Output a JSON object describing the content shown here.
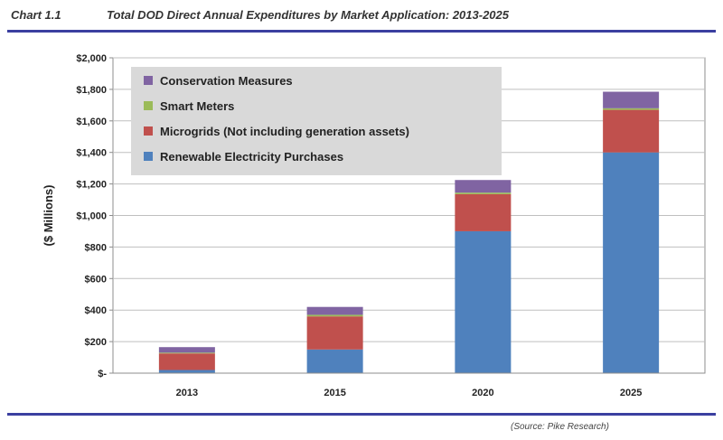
{
  "header": {
    "chart_number": "Chart 1.1",
    "title": "Total DOD Direct Annual Expenditures by Market Application: 2013-2025"
  },
  "source_note": "(Source: Pike Research)",
  "colors": {
    "rule": "#3b3fa0",
    "legend_bg": "#d9d9d9",
    "plot_border": "#8c8c8c",
    "grid": "#bfbfbf"
  },
  "chart_data": {
    "type": "bar",
    "stacked": true,
    "categories": [
      "2013",
      "2015",
      "2020",
      "2025"
    ],
    "ylabel": "($ Millions)",
    "ylim": [
      0,
      2000
    ],
    "ytick_labels": [
      "$-",
      "$200",
      "$400",
      "$600",
      "$800",
      "$1,000",
      "$1,200",
      "$1,400",
      "$1,600",
      "$1,800",
      "$2,000"
    ],
    "grid": true,
    "legend_position": "top-left",
    "series": [
      {
        "name": "Renewable Electricity Purchases",
        "color": "#4f81bd",
        "values": [
          20,
          150,
          900,
          1400
        ]
      },
      {
        "name": "Microgrids (Not including generation assets)",
        "color": "#c0504d",
        "values": [
          105,
          210,
          235,
          270
        ]
      },
      {
        "name": "Smart Meters",
        "color": "#9bbb59",
        "values": [
          5,
          10,
          10,
          10
        ]
      },
      {
        "name": "Conservation Measures",
        "color": "#8064a2",
        "values": [
          35,
          50,
          80,
          105
        ]
      }
    ],
    "legend_order": [
      3,
      2,
      1,
      0
    ]
  }
}
